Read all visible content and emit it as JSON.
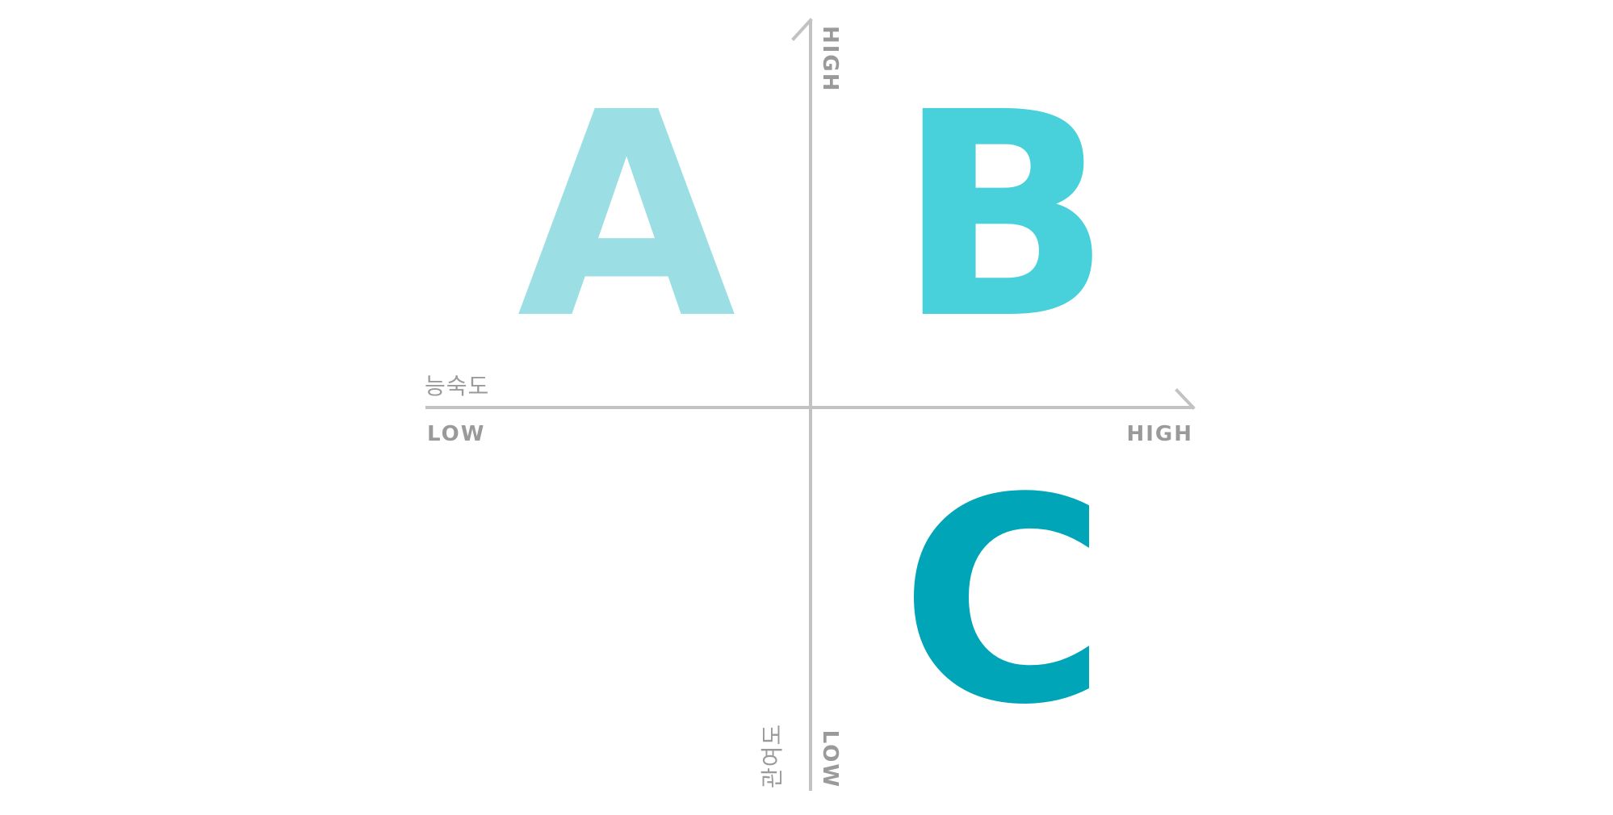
{
  "diagram": {
    "x_axis": {
      "title": "능숙도",
      "low_label": "LOW",
      "high_label": "HIGH"
    },
    "y_axis": {
      "title": "관여도",
      "low_label": "LOW",
      "high_label": "HIGH"
    },
    "quadrants": [
      {
        "letter": "A",
        "position": "top-left",
        "color": "#9bdfe4"
      },
      {
        "letter": "B",
        "position": "top-right",
        "color": "#48d1db"
      },
      {
        "letter": "C",
        "position": "bottom-right",
        "color": "#00a5b8"
      }
    ],
    "colors": {
      "axis": "#c2c2c2",
      "label": "#9a9a9a",
      "background": "#ffffff"
    }
  }
}
